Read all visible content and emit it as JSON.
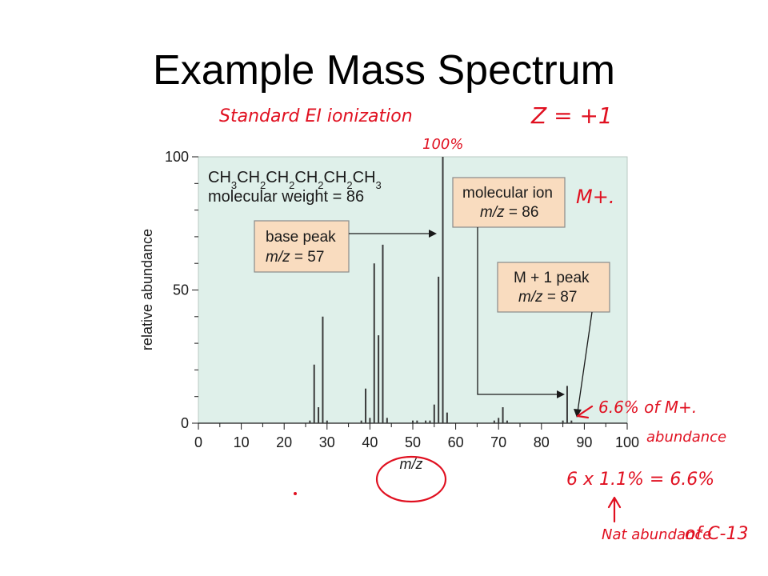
{
  "slide": {
    "title": "Example Mass Spectrum"
  },
  "chart_data": {
    "type": "bar",
    "xlabel": "m/z",
    "ylabel": "relative abundance",
    "xlim": [
      0,
      100
    ],
    "ylim": [
      0,
      100
    ],
    "x_ticks": [
      0,
      10,
      20,
      30,
      40,
      50,
      60,
      70,
      80,
      90,
      100
    ],
    "y_ticks": [
      0,
      50,
      100
    ],
    "peaks": [
      {
        "mz": 26,
        "abundance": 1
      },
      {
        "mz": 27,
        "abundance": 22
      },
      {
        "mz": 28,
        "abundance": 6
      },
      {
        "mz": 29,
        "abundance": 40
      },
      {
        "mz": 30,
        "abundance": 1
      },
      {
        "mz": 38,
        "abundance": 1
      },
      {
        "mz": 39,
        "abundance": 13
      },
      {
        "mz": 40,
        "abundance": 2
      },
      {
        "mz": 41,
        "abundance": 60
      },
      {
        "mz": 42,
        "abundance": 33
      },
      {
        "mz": 43,
        "abundance": 67
      },
      {
        "mz": 44,
        "abundance": 2
      },
      {
        "mz": 50,
        "abundance": 1
      },
      {
        "mz": 51,
        "abundance": 1
      },
      {
        "mz": 53,
        "abundance": 1
      },
      {
        "mz": 54,
        "abundance": 1
      },
      {
        "mz": 55,
        "abundance": 7
      },
      {
        "mz": 56,
        "abundance": 55
      },
      {
        "mz": 57,
        "abundance": 100
      },
      {
        "mz": 58,
        "abundance": 4
      },
      {
        "mz": 69,
        "abundance": 1
      },
      {
        "mz": 70,
        "abundance": 2
      },
      {
        "mz": 71,
        "abundance": 6
      },
      {
        "mz": 72,
        "abundance": 1
      },
      {
        "mz": 85,
        "abundance": 1
      },
      {
        "mz": 86,
        "abundance": 14
      },
      {
        "mz": 87,
        "abundance": 1
      }
    ],
    "annotations": {
      "formula": {
        "parts": [
          {
            "t": "CH",
            "sub": "3"
          },
          {
            "t": "CH",
            "sub": "2"
          },
          {
            "t": "CH",
            "sub": "2"
          },
          {
            "t": "CH",
            "sub": "2"
          },
          {
            "t": "CH",
            "sub": "2"
          },
          {
            "t": "CH",
            "sub": "3"
          }
        ]
      },
      "molecular_weight": "molecular weight = 86",
      "base_peak": {
        "label": "base peak",
        "mz_prefix": "m/z",
        "mz_value": " = 57"
      },
      "molecular_ion": {
        "label": "molecular ion",
        "mz_prefix": "m/z",
        "mz_value": " = 86"
      },
      "m_plus_1": {
        "label": "M + 1 peak",
        "mz_prefix": "m/z",
        "mz_value": " = 87"
      }
    },
    "colors": {
      "plot_background": "#dff0ea",
      "callout_fill": "#f9dcbf",
      "bars": "#3a3a3a",
      "handwriting": "#e01020"
    }
  },
  "handwritten_notes": {
    "ionization": "Standard EI ionization",
    "charge": "Z = +1",
    "hundred_pct": "100%",
    "m_plus": "M+.",
    "abundance_note_line1": "6.6% of M+.",
    "abundance_note_line2": "abundance",
    "calc": "6 x 1.1% = 6.6%",
    "nat_abundance": "Nat abundance",
    "c13": "of C-13"
  }
}
